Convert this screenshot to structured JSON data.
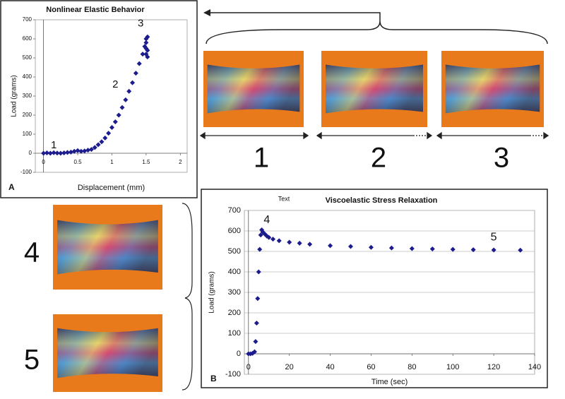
{
  "chart_data": [
    {
      "type": "scatter",
      "title": "Nonlinear Elastic Behavior",
      "x_label": "Displacement (mm)",
      "y_label": "Load (grams)",
      "panel": "A",
      "annotations": [
        "1",
        "2",
        "3"
      ],
      "x": [
        0,
        0.05,
        0.1,
        0.15,
        0.2,
        0.25,
        0.3,
        0.35,
        0.4,
        0.45,
        0.5,
        0.55,
        0.6,
        0.65,
        0.7,
        0.75,
        0.8,
        0.85,
        0.9,
        0.95,
        1.0,
        1.05,
        1.1,
        1.15,
        1.2,
        1.25,
        1.3,
        1.35,
        1.4,
        1.45,
        1.48,
        1.5,
        1.5,
        1.5,
        1.5,
        1.52,
        1.52,
        1.52
      ],
      "series": [
        {
          "color": "#1c1c8e",
          "values": [
            0,
            2,
            0,
            3,
            1,
            0,
            2,
            4,
            6,
            10,
            14,
            10,
            12,
            16,
            20,
            30,
            45,
            60,
            80,
            105,
            135,
            165,
            200,
            240,
            280,
            325,
            370,
            420,
            470,
            520,
            560,
            600,
            580,
            550,
            520,
            505,
            540,
            610
          ]
        }
      ],
      "xlim": [
        -0.12,
        2.1
      ],
      "xticks": [
        0,
        0.5,
        1,
        1.5,
        2
      ],
      "ylim": [
        -100,
        700
      ],
      "yticks": [
        -100,
        0,
        100,
        200,
        300,
        400,
        500,
        600,
        700
      ],
      "grid": false
    },
    {
      "type": "scatter",
      "title": "Viscoelastic Stress Relaxation",
      "x_label": "Time (sec)",
      "y_label": "Load (grams)",
      "panel": "B",
      "annotations": [
        "4",
        "5",
        "Text"
      ],
      "x": [
        0,
        1,
        2,
        3,
        3.5,
        4,
        4.5,
        5,
        5.5,
        6,
        6.5,
        7,
        8,
        9,
        10,
        12,
        15,
        20,
        25,
        30,
        40,
        50,
        60,
        70,
        80,
        90,
        100,
        110,
        120,
        133
      ],
      "series": [
        {
          "color": "#1c1c8e",
          "values": [
            0,
            0,
            2,
            10,
            60,
            150,
            270,
            400,
            510,
            580,
            605,
            595,
            585,
            575,
            568,
            560,
            552,
            545,
            540,
            535,
            528,
            524,
            520,
            517,
            514,
            512,
            510,
            508,
            507,
            506
          ]
        }
      ],
      "xlim": [
        -2,
        140
      ],
      "xticks": [
        0,
        20,
        40,
        60,
        80,
        100,
        120,
        140
      ],
      "ylim": [
        -100,
        700
      ],
      "yticks": [
        -100,
        0,
        100,
        200,
        300,
        400,
        500,
        600,
        700
      ],
      "grid": true
    }
  ],
  "photo_labels": [
    "1",
    "2",
    "3",
    "4",
    "5"
  ]
}
